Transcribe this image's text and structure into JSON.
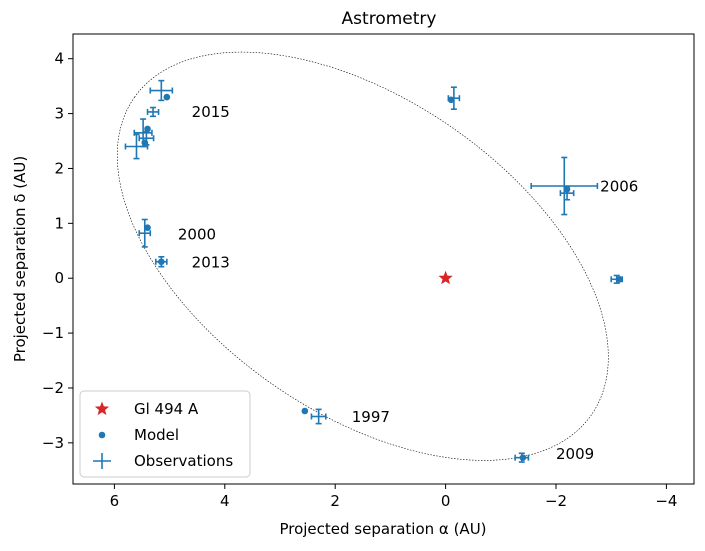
{
  "chart_data": {
    "type": "scatter",
    "title": "Astrometry",
    "xlabel": "Projected separation α (AU)",
    "ylabel": "Projected separation δ (AU)",
    "xlim": [
      6.75,
      -4.5
    ],
    "ylim": [
      -3.75,
      4.45
    ],
    "xticks": [
      6,
      4,
      2,
      0,
      -2,
      -4
    ],
    "yticks": [
      4,
      3,
      2,
      1,
      0,
      -1,
      -2,
      -3
    ],
    "xtick_labels": [
      "6",
      "4",
      "2",
      "0",
      "−2",
      "−4"
    ],
    "ytick_labels": [
      "4",
      "3",
      "2",
      "1",
      "0",
      "−1",
      "−2",
      "−3"
    ],
    "grid": false,
    "legend_position": "lower-left",
    "colors": {
      "model": "#1f77b4",
      "observations": "#1f77b4",
      "star": "#d62728",
      "orbit": "#000000"
    },
    "star": {
      "name": "Gl 494 A",
      "x": 0,
      "y": 0
    },
    "orbit": {
      "cx": 1.5,
      "cy": 0.4,
      "a": 5.05,
      "b": 2.85,
      "angle_deg": 35
    },
    "model": [
      {
        "x": 5.05,
        "y": 3.3
      },
      {
        "x": 5.4,
        "y": 2.72
      },
      {
        "x": 5.45,
        "y": 2.47
      },
      {
        "x": 5.4,
        "y": 0.92
      },
      {
        "x": 5.15,
        "y": 0.3
      },
      {
        "x": 2.55,
        "y": -2.42
      },
      {
        "x": -1.4,
        "y": -3.27
      },
      {
        "x": -3.15,
        "y": -0.02
      },
      {
        "x": -2.2,
        "y": 1.62
      },
      {
        "x": -0.1,
        "y": 3.25
      }
    ],
    "observations": [
      {
        "x": 5.15,
        "y": 3.42,
        "xerr": 0.2,
        "yerr": 0.18
      },
      {
        "x": 5.3,
        "y": 3.03,
        "xerr": 0.1,
        "yerr": 0.08
      },
      {
        "x": 5.48,
        "y": 2.65,
        "xerr": 0.16,
        "yerr": 0.25
      },
      {
        "x": 5.42,
        "y": 2.55,
        "xerr": 0.13,
        "yerr": 0.12
      },
      {
        "x": 5.6,
        "y": 2.4,
        "xerr": 0.2,
        "yerr": 0.22
      },
      {
        "x": 5.45,
        "y": 0.82,
        "xerr": 0.1,
        "yerr": 0.25
      },
      {
        "x": 5.15,
        "y": 0.3,
        "xerr": 0.1,
        "yerr": 0.09
      },
      {
        "x": 2.3,
        "y": -2.52,
        "xerr": 0.13,
        "yerr": 0.13
      },
      {
        "x": -1.38,
        "y": -3.27,
        "xerr": 0.12,
        "yerr": 0.08
      },
      {
        "x": -3.1,
        "y": -0.02,
        "xerr": 0.1,
        "yerr": 0.07
      },
      {
        "x": -2.15,
        "y": 1.68,
        "xerr": 0.6,
        "yerr": 0.52
      },
      {
        "x": -2.2,
        "y": 1.55,
        "xerr": 0.12,
        "yerr": 0.12
      },
      {
        "x": -0.15,
        "y": 3.28,
        "xerr": 0.1,
        "yerr": 0.2
      }
    ],
    "annotations": [
      {
        "text": "2015",
        "x": 4.6,
        "y": 3.03
      },
      {
        "text": "2006",
        "x": -2.8,
        "y": 1.67
      },
      {
        "text": "2000",
        "x": 4.85,
        "y": 0.8
      },
      {
        "text": "2013",
        "x": 4.6,
        "y": 0.29
      },
      {
        "text": "1997",
        "x": 1.7,
        "y": -2.53
      },
      {
        "text": "2009",
        "x": -2.0,
        "y": -3.2
      }
    ],
    "legend": [
      {
        "label": "Gl 494 A",
        "marker": "star"
      },
      {
        "label": "Model",
        "marker": "dot"
      },
      {
        "label": "Observations",
        "marker": "plus"
      }
    ]
  }
}
